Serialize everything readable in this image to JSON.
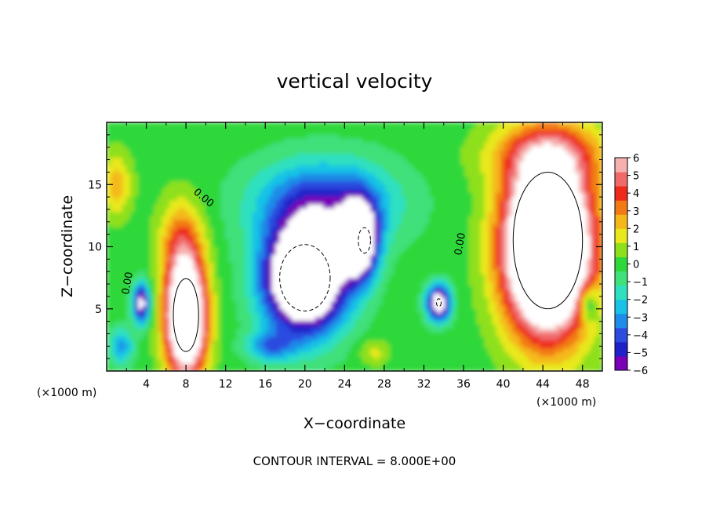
{
  "chart_data": {
    "type": "heatmap",
    "title": "vertical velocity",
    "xlabel": "X−coordinate",
    "ylabel": "Z−coordinate",
    "x_unit": "(×1000 m)",
    "y_unit": "(×1000 m)",
    "xlim": [
      0,
      50
    ],
    "ylim": [
      0,
      20
    ],
    "x_ticks": [
      "4",
      "8",
      "12",
      "16",
      "20",
      "24",
      "28",
      "32",
      "36",
      "40",
      "44",
      "48"
    ],
    "x_tick_values": [
      4,
      8,
      12,
      16,
      20,
      24,
      28,
      32,
      36,
      40,
      44,
      48
    ],
    "y_ticks": [
      "5",
      "10",
      "15"
    ],
    "y_tick_values": [
      5,
      10,
      15
    ],
    "colorbar": {
      "ticks": [
        "6",
        "5",
        "4",
        "3",
        "2",
        "1",
        "0",
        "−1",
        "−2",
        "−3",
        "−4",
        "−5",
        "−6"
      ],
      "min": -6,
      "max": 6,
      "colors": [
        "#7a00b8",
        "#2020c8",
        "#2c4ce0",
        "#1e8ce8",
        "#19c2e6",
        "#2ee0c0",
        "#40e07a",
        "#2fd83a",
        "#8ee01c",
        "#e8e81c",
        "#f5b81a",
        "#f27a14",
        "#ee2a1a",
        "#f06a6a",
        "#f7b0b0"
      ]
    },
    "zero_contour_labels": [
      "0.00",
      "0.00",
      "0.00"
    ],
    "contour_interval_text": "CONTOUR INTERVAL = 8.000E+00",
    "features": [
      {
        "kind": "updraft",
        "x": 8.0,
        "z": 4.5,
        "peak": 12
      },
      {
        "kind": "updraft",
        "x": 44.5,
        "z": 10.5,
        "peak": 16
      },
      {
        "kind": "downdraft",
        "x": 20.0,
        "z": 7.5,
        "peak": -12
      },
      {
        "kind": "downdraft",
        "x": 26.0,
        "z": 10.5,
        "peak": -9
      },
      {
        "kind": "downdraft",
        "x": 33.5,
        "z": 5.5,
        "peak": -8
      },
      {
        "kind": "downdraft",
        "x": 3.5,
        "z": 5.5,
        "peak": -7
      }
    ]
  }
}
